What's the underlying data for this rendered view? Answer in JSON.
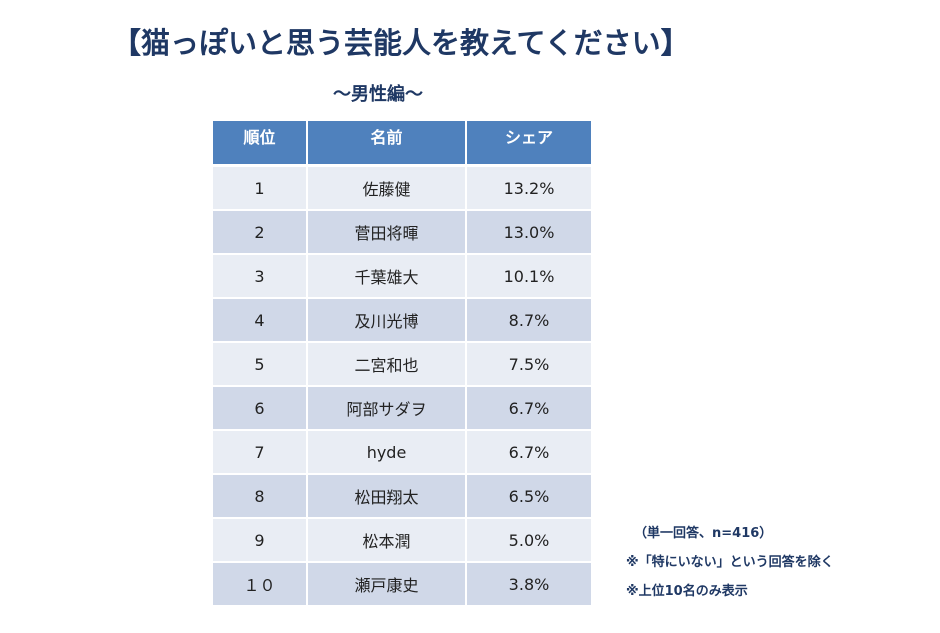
{
  "title": "【猫っぽいと思う芸能人を教えてください】",
  "subtitle": "～男性編～",
  "table": {
    "headers": [
      "順位",
      "名前",
      "シェア"
    ],
    "rows": [
      {
        "rank": "1",
        "name": "佐藤健",
        "share": "13.2%"
      },
      {
        "rank": "2",
        "name": "菅田将暉",
        "share": "13.0%"
      },
      {
        "rank": "3",
        "name": "千葉雄大",
        "share": "10.1%"
      },
      {
        "rank": "4",
        "name": "及川光博",
        "share": "8.7%"
      },
      {
        "rank": "5",
        "name": "二宮和也",
        "share": "7.5%"
      },
      {
        "rank": "6",
        "name": "阿部サダヲ",
        "share": "6.7%"
      },
      {
        "rank": "7",
        "name": "hyde",
        "share": "6.7%"
      },
      {
        "rank": "8",
        "name": "松田翔太",
        "share": "6.5%"
      },
      {
        "rank": "9",
        "name": "松本潤",
        "share": "5.0%"
      },
      {
        "rank": "１０",
        "name": "瀬戸康史",
        "share": "3.8%"
      }
    ]
  },
  "notes": [
    "（単一回答、n=416）",
    "※「特にいない」という回答を除く",
    "※上位10名のみ表示"
  ],
  "colors": {
    "title": "#1f3864",
    "header_bg": "#4f81bd",
    "row_light": "#e9edf4",
    "row_dark": "#d0d8e8"
  }
}
